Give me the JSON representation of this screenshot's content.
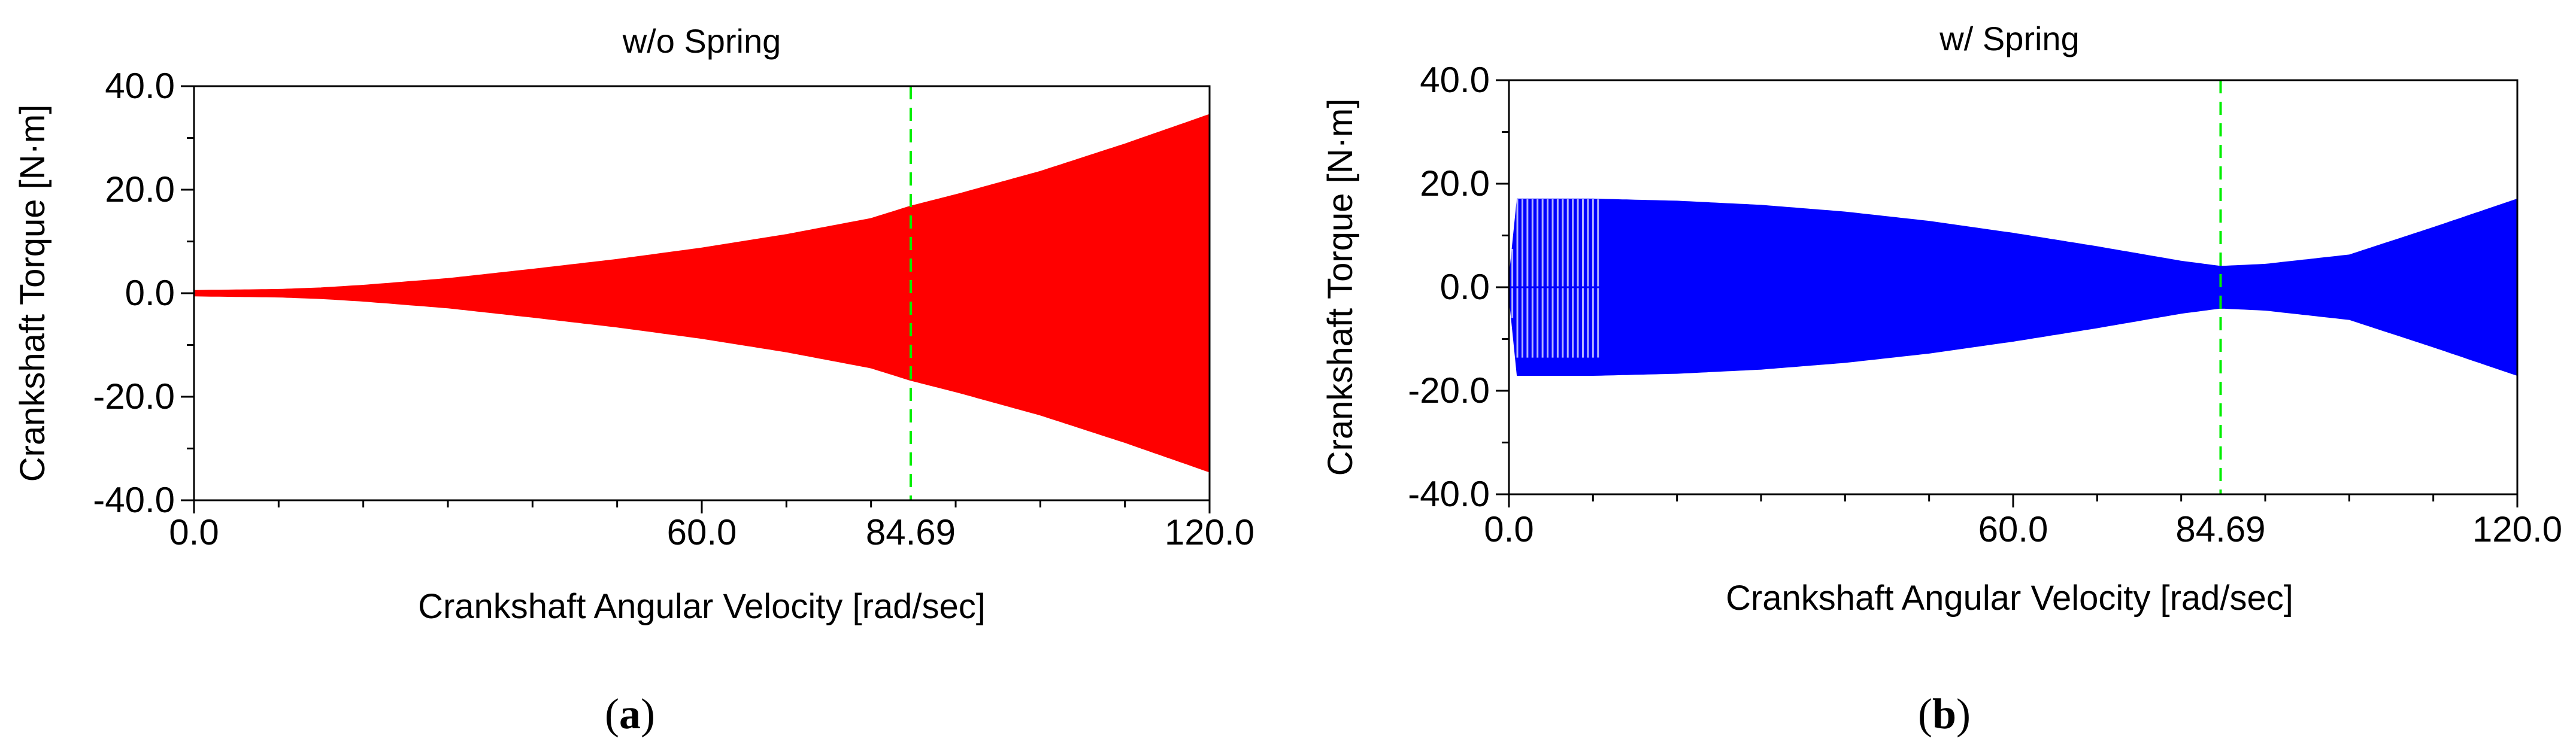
{
  "chart_data": [
    {
      "type": "area",
      "title": "w/o Spring",
      "xlabel": "Crankshaft Angular Velocity [rad/sec]",
      "ylabel": "Crankshaft Torque [N·m]",
      "xlim": [
        0,
        120
      ],
      "ylim": [
        -40,
        40
      ],
      "x_ticks": [
        "0.0",
        "60.0",
        "120.0"
      ],
      "y_ticks": [
        "-40.0",
        "-20.0",
        "0.0",
        "20.0",
        "40.0"
      ],
      "marker": {
        "x": 84.69,
        "label": "84.69",
        "color": "#00ee00"
      },
      "series_color": "#ff0000",
      "caption": {
        "open": "(",
        "letter": "a",
        "close": ")"
      },
      "envelope": {
        "x": [
          0,
          10,
          15,
          20,
          30,
          40,
          50,
          60,
          70,
          80,
          84.69,
          90,
          100,
          110,
          120
        ],
        "upper": [
          0.5,
          0.7,
          1.0,
          1.5,
          2.8,
          4.6,
          6.5,
          8.7,
          11.3,
          14.4,
          16.8,
          19.0,
          23.5,
          28.8,
          34.5
        ],
        "lower": [
          -0.5,
          -0.7,
          -1.0,
          -1.5,
          -2.8,
          -4.6,
          -6.5,
          -8.7,
          -11.3,
          -14.4,
          -16.8,
          -19.0,
          -23.5,
          -28.8,
          -34.5
        ]
      }
    },
    {
      "type": "area",
      "title": "w/ Spring",
      "xlabel": "Crankshaft Angular Velocity [rad/sec]",
      "ylabel": "Crankshaft Torque [N·m]",
      "xlim": [
        0,
        120
      ],
      "ylim": [
        -40,
        40
      ],
      "x_ticks": [
        "0.0",
        "60.0",
        "120.0"
      ],
      "y_ticks": [
        "-40.0",
        "-20.0",
        "0.0",
        "20.0",
        "40.0"
      ],
      "marker": {
        "x": 84.69,
        "label": "84.69",
        "color": "#00ee00"
      },
      "series_color": "#0000ff",
      "caption": {
        "open": "(",
        "letter": "b",
        "close": ")"
      },
      "envelope": {
        "x": [
          0,
          1,
          3,
          5,
          10,
          20,
          30,
          40,
          50,
          60,
          70,
          80,
          84.69,
          90,
          100,
          110,
          120
        ],
        "upper": [
          1.0,
          17.0,
          17.0,
          17.0,
          17.0,
          16.6,
          15.8,
          14.5,
          12.7,
          10.4,
          7.8,
          5.0,
          4.0,
          4.4,
          6.2,
          11.5,
          17.0
        ],
        "lower": [
          -1.0,
          -17.0,
          -17.0,
          -17.0,
          -17.0,
          -16.6,
          -15.8,
          -14.5,
          -12.7,
          -10.4,
          -7.8,
          -5.0,
          -4.0,
          -4.4,
          -6.2,
          -11.5,
          -17.0
        ]
      }
    }
  ]
}
